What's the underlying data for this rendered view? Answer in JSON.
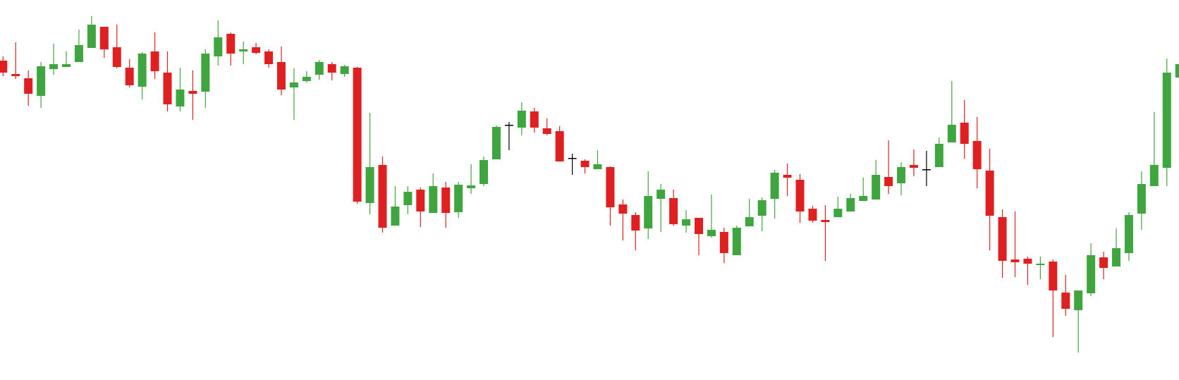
{
  "chart_data": {
    "type": "candlestick",
    "up_color": "#3fa53f",
    "down_color": "#e02020",
    "doji_color": "#000000",
    "ylim": [
      0,
      539
    ],
    "open": [
      453,
      434,
      428,
      403,
      441,
      444,
      451,
      471,
      501,
      472,
      443,
      416,
      466,
      436,
      388,
      410,
      409,
      459,
      491,
      466,
      472,
      466,
      451,
      415,
      424,
      433,
      448,
      434,
      443,
      251,
      305,
      219,
      248,
      270,
      237,
      273,
      238,
      272,
      278,
      313,
      362,
      358,
      381,
      357,
      353,
      315,
      311,
      299,
      302,
      249,
      234,
      215,
      257,
      258,
      219,
      230,
      204,
      210,
      177,
      218,
      233,
      257,
      291,
      284,
      243,
      227,
      231,
      239,
      254,
      256,
      288,
      279,
      305,
      299,
      302,
      337,
      365,
      339,
      297,
      231,
      171,
      172,
      163,
      168,
      124,
      99,
      123,
      174,
      161,
      180,
      236,
      275,
      301,
      429
    ],
    "high": [
      459,
      479,
      439,
      451,
      477,
      466,
      497,
      516,
      501,
      504,
      455,
      465,
      493,
      466,
      443,
      439,
      469,
      510,
      493,
      480,
      478,
      469,
      473,
      442,
      438,
      454,
      451,
      447,
      444,
      379,
      317,
      275,
      275,
      273,
      293,
      281,
      281,
      306,
      317,
      361,
      366,
      394,
      386,
      371,
      360,
      321,
      313,
      326,
      303,
      256,
      238,
      296,
      278,
      270,
      241,
      230,
      263,
      216,
      219,
      257,
      259,
      298,
      307,
      292,
      247,
      248,
      260,
      264,
      287,
      312,
      340,
      309,
      327,
      325,
      344,
      424,
      397,
      373,
      328,
      242,
      239,
      175,
      175,
      171,
      149,
      127,
      194,
      182,
      215,
      238,
      296,
      380,
      456,
      510
    ],
    "low": [
      431,
      427,
      389,
      386,
      433,
      444,
      451,
      471,
      457,
      442,
      415,
      398,
      427,
      381,
      381,
      369,
      386,
      446,
      446,
      448,
      462,
      443,
      404,
      369,
      422,
      426,
      425,
      430,
      250,
      235,
      209,
      219,
      235,
      217,
      237,
      216,
      230,
      264,
      275,
      313,
      326,
      347,
      351,
      347,
      310,
      291,
      293,
      299,
      219,
      198,
      184,
      200,
      210,
      219,
      209,
      177,
      202,
      166,
      177,
      218,
      211,
      229,
      261,
      223,
      223,
      169,
      231,
      239,
      254,
      256,
      264,
      262,
      289,
      275,
      302,
      337,
      314,
      272,
      184,
      145,
      146,
      135,
      143,
      61,
      91,
      39,
      119,
      143,
      161,
      169,
      213,
      275,
      275,
      404
    ],
    "close": [
      436,
      431,
      406,
      445,
      448,
      448,
      475,
      504,
      469,
      444,
      418,
      463,
      438,
      391,
      412,
      406,
      463,
      486,
      463,
      469,
      464,
      448,
      412,
      422,
      430,
      451,
      436,
      445,
      253,
      302,
      216,
      246,
      267,
      239,
      275,
      237,
      277,
      276,
      312,
      359,
      362,
      382,
      358,
      349,
      310,
      315,
      302,
      306,
      245,
      236,
      212,
      261,
      270,
      221,
      228,
      207,
      213,
      180,
      216,
      231,
      255,
      294,
      287,
      239,
      226,
      224,
      243,
      258,
      261,
      291,
      275,
      302,
      301,
      299,
      335,
      362,
      335,
      299,
      233,
      169,
      167,
      165,
      165,
      127,
      101,
      127,
      177,
      159,
      187,
      234,
      278,
      305,
      436,
      448
    ]
  }
}
